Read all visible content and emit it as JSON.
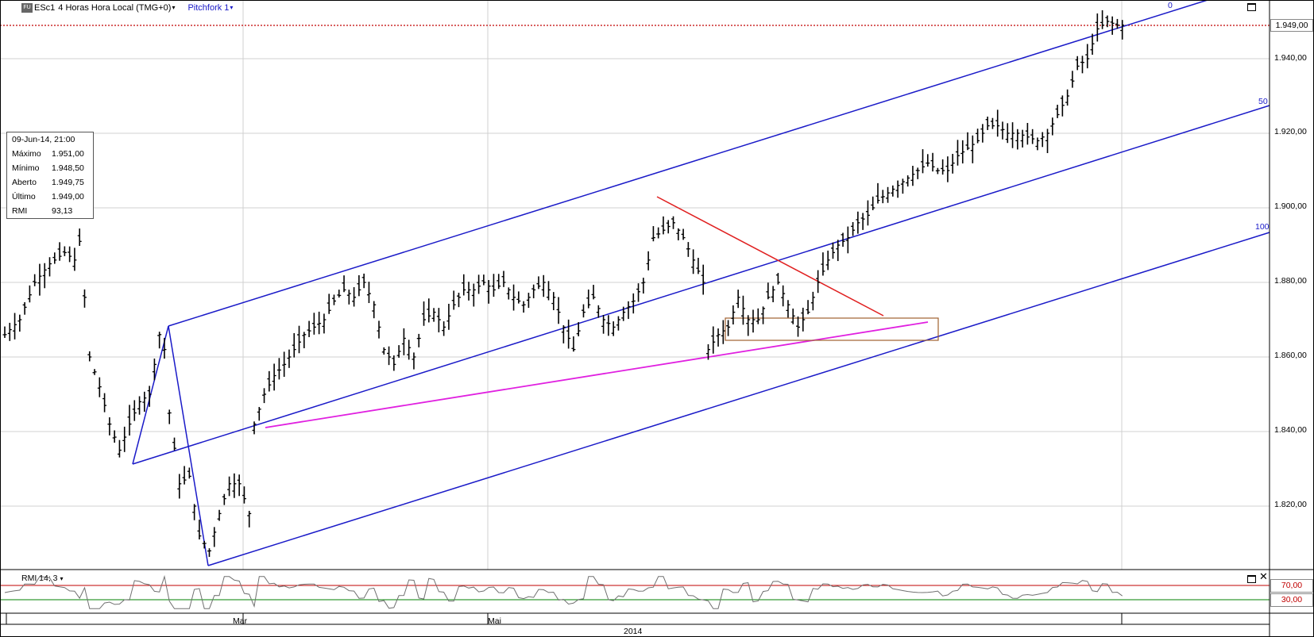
{
  "header": {
    "symbol_icon": "futures-icon",
    "symbol": "ESc1",
    "interval": "4 Horas Hora Local (TMG+0)",
    "tool": "Pitchfork 1"
  },
  "info_box": {
    "date": "09-Jun-14, 21:00",
    "rows": [
      {
        "label": "Máximo",
        "value": "1.951,00"
      },
      {
        "label": "Mínimo",
        "value": "1.948,50"
      },
      {
        "label": "Aberto",
        "value": "1.949,75"
      },
      {
        "label": "Último",
        "value": "1.949,00"
      },
      {
        "label": "RMI",
        "value": "93,13"
      }
    ]
  },
  "price_axis": {
    "ticks": [
      "1.940,00",
      "1.920,00",
      "1.900,00",
      "1.880,00",
      "1.860,00",
      "1.840,00",
      "1.820,00"
    ],
    "last_price": "1.949,00"
  },
  "pitchfork_levels": [
    "0",
    "50",
    "100"
  ],
  "indicator": {
    "label": "RMI 14; 3",
    "levels": [
      "70,00",
      "30,00"
    ]
  },
  "time_axis": {
    "months": [
      "Mar",
      "Mai"
    ],
    "year": "2014"
  },
  "colors": {
    "pitchfork": "#1a1ac8",
    "resistance_line": "#e02020",
    "support_line": "#e020e0",
    "box": "#a06030",
    "last_price_line": "#c00000",
    "rmi_upper": "#c00000",
    "rmi_lower": "#008000"
  },
  "chart_data": {
    "type": "bar",
    "title": "ESc1 4 Horas Hora Local (TMG+0)",
    "ylim": [
      1800,
      1952
    ],
    "grid": true,
    "close_path": [
      [
        0,
        1866
      ],
      [
        3,
        1870
      ],
      [
        6,
        1880
      ],
      [
        9,
        1885
      ],
      [
        12,
        1888
      ],
      [
        14,
        1886
      ],
      [
        15,
        1891
      ],
      [
        16,
        1876
      ],
      [
        17,
        1860
      ],
      [
        19,
        1852
      ],
      [
        21,
        1842
      ],
      [
        23,
        1835
      ],
      [
        25,
        1842
      ],
      [
        27,
        1848
      ],
      [
        29,
        1850
      ],
      [
        31,
        1866
      ],
      [
        32,
        1862
      ],
      [
        33,
        1845
      ],
      [
        35,
        1826
      ],
      [
        37,
        1828
      ],
      [
        39,
        1812
      ],
      [
        41,
        1808
      ],
      [
        43,
        1818
      ],
      [
        45,
        1826
      ],
      [
        47,
        1826
      ],
      [
        49,
        1818
      ],
      [
        50,
        1842
      ],
      [
        52,
        1850
      ],
      [
        54,
        1855
      ],
      [
        56,
        1858
      ],
      [
        58,
        1862
      ],
      [
        60,
        1866
      ],
      [
        62,
        1868
      ],
      [
        64,
        1870
      ],
      [
        66,
        1875
      ],
      [
        68,
        1878
      ],
      [
        70,
        1876
      ],
      [
        72,
        1880
      ],
      [
        74,
        1874
      ],
      [
        76,
        1862
      ],
      [
        78,
        1858
      ],
      [
        80,
        1865
      ],
      [
        82,
        1860
      ],
      [
        84,
        1870
      ],
      [
        86,
        1872
      ],
      [
        88,
        1868
      ],
      [
        90,
        1874
      ],
      [
        92,
        1878
      ],
      [
        94,
        1878
      ],
      [
        96,
        1880
      ],
      [
        98,
        1878
      ],
      [
        100,
        1880
      ],
      [
        102,
        1876
      ],
      [
        104,
        1874
      ],
      [
        106,
        1878
      ],
      [
        108,
        1880
      ],
      [
        110,
        1876
      ],
      [
        112,
        1868
      ],
      [
        114,
        1862
      ],
      [
        116,
        1872
      ],
      [
        118,
        1876
      ],
      [
        120,
        1870
      ],
      [
        122,
        1868
      ],
      [
        124,
        1872
      ],
      [
        126,
        1875
      ],
      [
        128,
        1880
      ],
      [
        130,
        1892
      ],
      [
        132,
        1894
      ],
      [
        134,
        1896
      ],
      [
        136,
        1892
      ],
      [
        138,
        1886
      ],
      [
        140,
        1880
      ],
      [
        141,
        1862
      ],
      [
        143,
        1866
      ],
      [
        145,
        1868
      ],
      [
        147,
        1876
      ],
      [
        149,
        1870
      ],
      [
        151,
        1870
      ],
      [
        153,
        1876
      ],
      [
        155,
        1880
      ],
      [
        157,
        1874
      ],
      [
        159,
        1868
      ],
      [
        161,
        1872
      ],
      [
        163,
        1880
      ],
      [
        165,
        1886
      ],
      [
        167,
        1890
      ],
      [
        169,
        1892
      ],
      [
        171,
        1896
      ],
      [
        173,
        1898
      ],
      [
        175,
        1902
      ],
      [
        177,
        1904
      ],
      [
        179,
        1906
      ],
      [
        181,
        1908
      ],
      [
        183,
        1910
      ],
      [
        185,
        1912
      ],
      [
        187,
        1910
      ],
      [
        189,
        1910
      ],
      [
        191,
        1914
      ],
      [
        193,
        1916
      ],
      [
        195,
        1918
      ],
      [
        197,
        1922
      ],
      [
        199,
        1922
      ],
      [
        201,
        1920
      ],
      [
        203,
        1920
      ],
      [
        205,
        1919
      ],
      [
        207,
        1918
      ],
      [
        209,
        1920
      ],
      [
        211,
        1925
      ],
      [
        213,
        1930
      ],
      [
        215,
        1938
      ],
      [
        217,
        1940
      ],
      [
        219,
        1948
      ],
      [
        221,
        1950
      ],
      [
        223,
        1949
      ],
      [
        224,
        1949
      ]
    ],
    "overlays": [
      {
        "name": "pitchfork",
        "levels": [
          "0",
          "50",
          "100"
        ]
      },
      {
        "name": "resistance-line"
      },
      {
        "name": "support-line"
      },
      {
        "name": "consolidation-box"
      }
    ],
    "indicator": {
      "name": "RMI 14; 3",
      "levels": [
        70,
        30
      ],
      "last": 93.13
    }
  }
}
